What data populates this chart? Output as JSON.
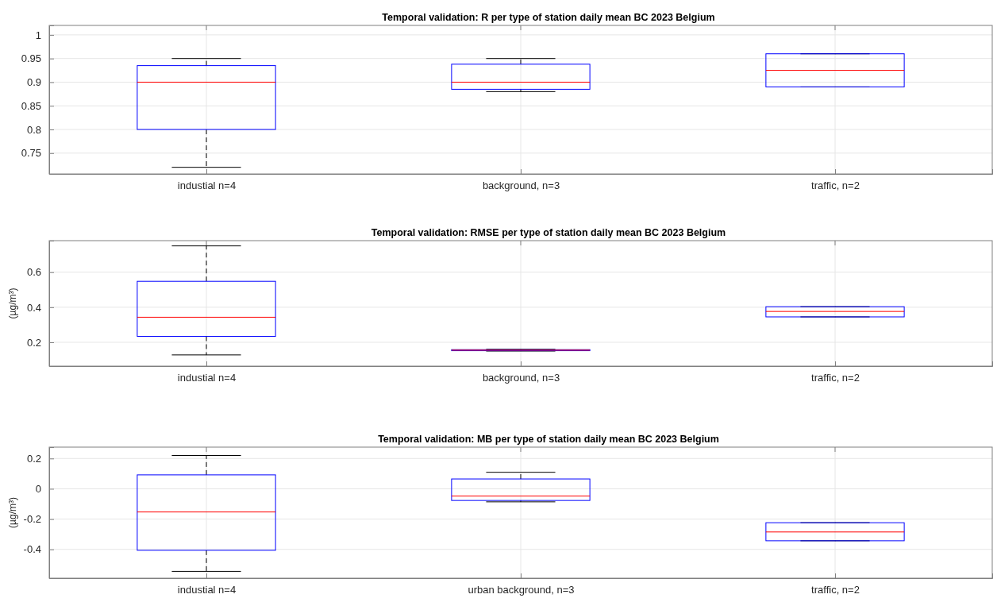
{
  "chart_data": [
    {
      "type": "box",
      "title": "Temporal validation: R per type of station daily mean BC 2023 Belgium",
      "categories": [
        "industial n=4",
        "background, n=3",
        "traffic, n=2"
      ],
      "color": "#0000ff",
      "ylim": [
        0.706,
        1.02
      ],
      "yticks": [
        0.75,
        0.8,
        0.85,
        0.9,
        0.95,
        1
      ],
      "grid": true,
      "boxes": [
        {
          "low": 0.72,
          "q1": 0.8,
          "median": 0.9,
          "q3": 0.935,
          "high": 0.95
        },
        {
          "low": 0.88,
          "q1": 0.885,
          "median": 0.9,
          "q3": 0.938,
          "high": 0.95
        },
        {
          "low": 0.89,
          "q1": 0.89,
          "median": 0.925,
          "q3": 0.96,
          "high": 0.96
        }
      ]
    },
    {
      "type": "box",
      "title": "Temporal validation: RMSE per type of station daily mean BC 2023 Belgium",
      "ylabel": "(µg/m³)",
      "categories": [
        "industial n=4",
        "background, n=3",
        "traffic, n=2"
      ],
      "color": "#0000ff",
      "ylim": [
        0.064,
        0.78
      ],
      "yticks": [
        0.2,
        0.4,
        0.6
      ],
      "grid": true,
      "boxes": [
        {
          "low": 0.128,
          "q1": 0.234,
          "median": 0.343,
          "q3": 0.548,
          "high": 0.75
        },
        {
          "low": 0.15,
          "q1": 0.152,
          "median": 0.155,
          "q3": 0.158,
          "high": 0.16
        },
        {
          "low": 0.345,
          "q1": 0.345,
          "median": 0.376,
          "q3": 0.403,
          "high": 0.403
        }
      ]
    },
    {
      "type": "box",
      "title": "Temporal validation: MB per type of station daily mean BC 2023 Belgium",
      "ylabel": "(µg/m³)",
      "categories": [
        "industial n=4",
        "urban background, n=3",
        "traffic, n=2"
      ],
      "color": "#0000ff",
      "ylim": [
        -0.59,
        0.275
      ],
      "yticks": [
        -0.4,
        -0.2,
        0,
        0.2
      ],
      "grid": true,
      "boxes": [
        {
          "low": -0.545,
          "q1": -0.406,
          "median": -0.153,
          "q3": 0.092,
          "high": 0.22
        },
        {
          "low": -0.086,
          "q1": -0.077,
          "median": -0.048,
          "q3": 0.065,
          "high": 0.109
        },
        {
          "low": -0.343,
          "q1": -0.343,
          "median": -0.285,
          "q3": -0.224,
          "high": -0.224
        }
      ]
    }
  ]
}
